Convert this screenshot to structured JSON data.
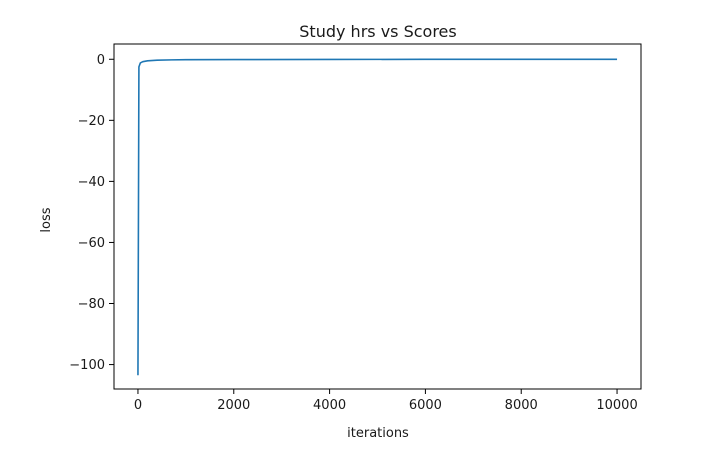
{
  "chart_data": {
    "type": "line",
    "title": "Study hrs vs Scores",
    "xlabel": "iterations",
    "ylabel": "loss",
    "xlim": [
      -500,
      10500
    ],
    "ylim": [
      -108,
      5
    ],
    "xticks": [
      0,
      2000,
      4000,
      6000,
      8000,
      10000
    ],
    "xtick_labels": [
      "0",
      "2000",
      "4000",
      "6000",
      "8000",
      "10000"
    ],
    "yticks": [
      0,
      -20,
      -40,
      -60,
      -80,
      -100
    ],
    "ytick_labels": [
      "0",
      "−20",
      "−40",
      "−60",
      "−80",
      "−100"
    ],
    "grid": false,
    "series": [
      {
        "color": "#1f77b4",
        "x": [
          0,
          20,
          50,
          100,
          200,
          400,
          700,
          1000,
          2000,
          4000,
          6000,
          8000,
          10000
        ],
        "y": [
          -103.5,
          -2.5,
          -1.2,
          -0.8,
          -0.5,
          -0.3,
          -0.2,
          -0.15,
          -0.1,
          -0.05,
          -0.03,
          -0.02,
          -0.02
        ]
      }
    ]
  }
}
